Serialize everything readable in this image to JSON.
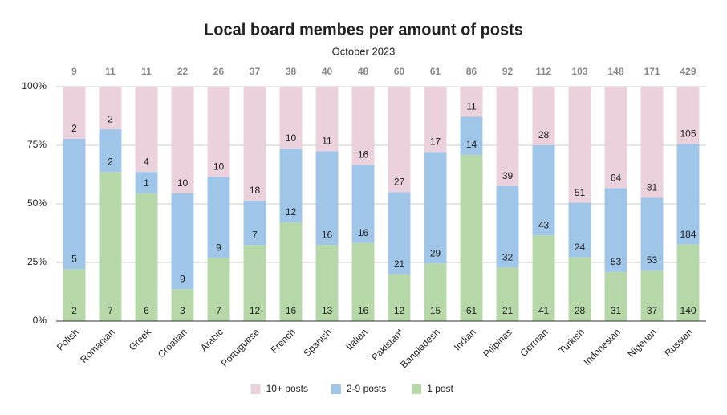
{
  "chart_data": {
    "type": "bar",
    "stacked": "percent",
    "title": "Local board membes per amount of posts",
    "subtitle": "October 2023",
    "categories": [
      "Polish",
      "Romanian",
      "Greek",
      "Croatian",
      "Arabic",
      "Portuguese",
      "French",
      "Spanish",
      "Italian",
      "Pakistan*",
      "Bangladesh",
      "Indian",
      "Pilipinas",
      "German",
      "Turkish",
      "Indonesian",
      "Nigerian",
      "Russian"
    ],
    "totals": [
      9,
      11,
      11,
      22,
      26,
      37,
      38,
      40,
      48,
      60,
      61,
      86,
      92,
      112,
      103,
      148,
      171,
      429
    ],
    "series": [
      {
        "name": "10+ posts",
        "color": "#ead1dc",
        "values": [
          2,
          2,
          4,
          10,
          10,
          18,
          10,
          11,
          16,
          27,
          17,
          11,
          39,
          28,
          51,
          64,
          81,
          105
        ]
      },
      {
        "name": "2-9 posts",
        "color": "#9fc5e8",
        "values": [
          5,
          2,
          1,
          9,
          9,
          7,
          12,
          16,
          16,
          21,
          29,
          14,
          32,
          43,
          24,
          53,
          53,
          184
        ]
      },
      {
        "name": "1 post",
        "color": "#b6d7a8",
        "values": [
          2,
          7,
          6,
          3,
          7,
          12,
          16,
          13,
          16,
          12,
          15,
          61,
          21,
          41,
          28,
          31,
          37,
          140
        ]
      }
    ],
    "ylim": [
      0,
      100
    ],
    "yticks": [
      {
        "value": 0,
        "label": "0%"
      },
      {
        "value": 25,
        "label": "25%"
      },
      {
        "value": 50,
        "label": "50%"
      },
      {
        "value": 75,
        "label": "75%"
      },
      {
        "value": 100,
        "label": "100%"
      }
    ],
    "grid": true,
    "legend": "bottom"
  }
}
